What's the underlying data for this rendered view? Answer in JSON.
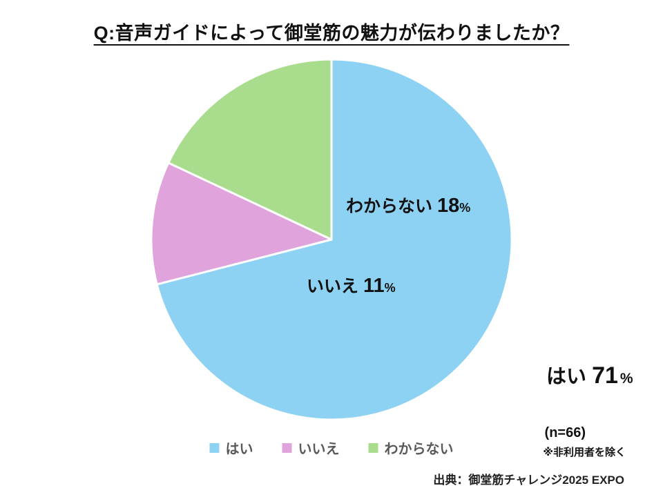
{
  "title": "Q:音声ガイドによって御堂筋の魅力が伝わりましたか？",
  "chart_data": {
    "type": "pie",
    "categories": [
      "はい",
      "いいえ",
      "わからない"
    ],
    "values": [
      71,
      11,
      18
    ],
    "unit": "%",
    "colors": [
      "#8DD2F2",
      "#E0A3DC",
      "#A9DD8D"
    ],
    "start_angle_deg": 0,
    "direction": "clockwise",
    "legend_position": "bottom",
    "slice_border_color": "#ffffff"
  },
  "annotations": {
    "sample_size": "(n=66)",
    "exclusion_note": "※非利用者を除く",
    "source": "出典：御堂筋チャレンジ2025 EXPO"
  }
}
